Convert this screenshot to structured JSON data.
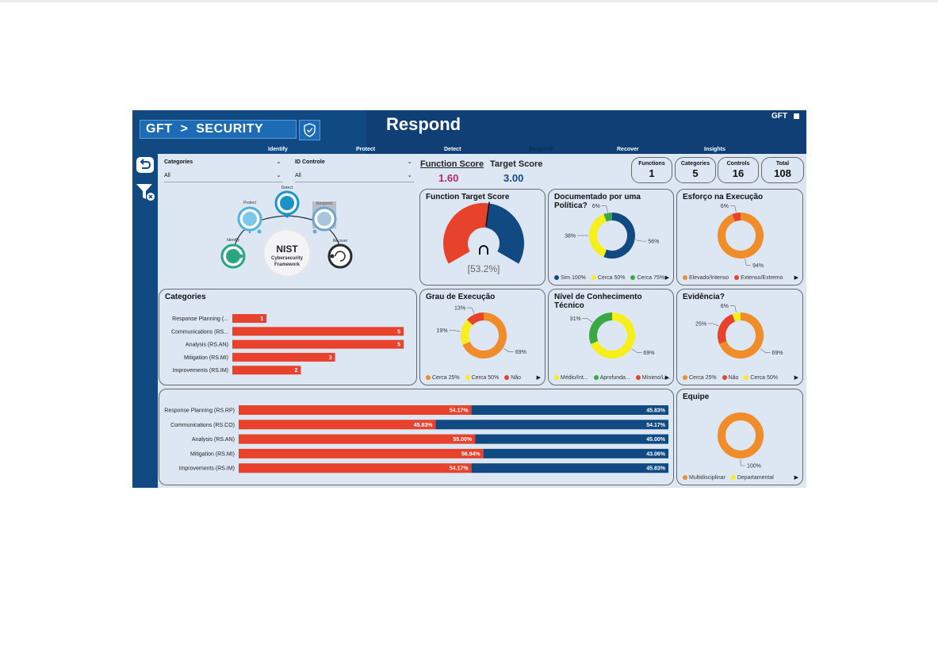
{
  "header": {
    "brand": "GFT",
    "brand_arrow": ">",
    "brand_section": "SECURITY",
    "title": "Respond",
    "corner_logo": "GFT"
  },
  "tabs": [
    {
      "label": "Identify",
      "active": false
    },
    {
      "label": "Protect",
      "active": false
    },
    {
      "label": "Detect",
      "active": false
    },
    {
      "label": "Respond",
      "active": true
    },
    {
      "label": "Recover",
      "active": false
    },
    {
      "label": "Insights",
      "active": false
    }
  ],
  "filters": {
    "categories": {
      "label": "Categories",
      "value": "All"
    },
    "id_controle": {
      "label": "ID Controle",
      "value": "All"
    }
  },
  "scores": {
    "function": {
      "label": "Function Score",
      "value": "1.60"
    },
    "target": {
      "label": "Target Score",
      "value": "3.00"
    }
  },
  "kpis": [
    {
      "label": "Functions",
      "value": "1"
    },
    {
      "label": "Categories",
      "value": "5"
    },
    {
      "label": "Controls",
      "value": "16"
    },
    {
      "label": "Total",
      "value": "108"
    }
  ],
  "nist": {
    "title": "NIST",
    "subtitle1": "Cybersecurity",
    "subtitle2": "Framework",
    "nodes": [
      "Identify",
      "Protect",
      "Detect",
      "Respond",
      "Recover"
    ]
  },
  "colors": {
    "red": "#e8412c",
    "navy": "#114a83",
    "yellow": "#f7ef1a",
    "green": "#3aa844",
    "orange": "#f08c2a",
    "score_pink": "#b42a6e"
  },
  "chart_data": [
    {
      "id": "gauge",
      "type": "gauge",
      "title": "Function Target Score",
      "value": 53.2,
      "label": "[53.2%]"
    },
    {
      "id": "politica",
      "type": "donut",
      "title": "Documentado por uma Política?",
      "series": [
        {
          "name": "Sim",
          "value": 56,
          "label": "56%",
          "color": "#114a83"
        },
        {
          "name": "Cerca 50%",
          "value": 38,
          "label": "38%",
          "color": "#f7ef1a"
        },
        {
          "name": "Cerca 75%",
          "value": 6,
          "label": "6%",
          "color": "#3aa844"
        }
      ],
      "legend": [
        "Sim 100%",
        "Cerca 50%",
        "Cerca 75%"
      ]
    },
    {
      "id": "esforco",
      "type": "donut",
      "title": "Esforço na Execução",
      "series": [
        {
          "name": "Elevado/Intenso",
          "value": 94,
          "label": "94%",
          "color": "#f08c2a"
        },
        {
          "name": "Extenso/Extremo",
          "value": 6,
          "label": "6%",
          "color": "#e8412c"
        }
      ],
      "legend": [
        "Elevado/Intenso",
        "Extenso/Extremo"
      ]
    },
    {
      "id": "categories_bar",
      "type": "bar",
      "title": "Categories",
      "categories": [
        "Response Planning (...",
        "Communications (RS...",
        "Analysis (RS.AN)",
        "Mitigation (RS.MI)",
        "Improvements (RS.IM)"
      ],
      "values": [
        1,
        5,
        5,
        3,
        2
      ]
    },
    {
      "id": "grau",
      "type": "donut",
      "title": "Grau de Execução",
      "series": [
        {
          "name": "Cerca 25%",
          "value": 69,
          "label": "69%",
          "color": "#f08c2a"
        },
        {
          "name": "Cerca 50%",
          "value": 19,
          "label": "19%",
          "color": "#f7ef1a"
        },
        {
          "name": "Não",
          "value": 13,
          "label": "13%",
          "color": "#e8412c"
        }
      ],
      "legend": [
        "Cerca 25%",
        "Cerca 50%",
        "Não"
      ]
    },
    {
      "id": "conhecimento",
      "type": "donut",
      "title": "Nível de Conhecimento Técnico",
      "series": [
        {
          "name": "Médio/Int...",
          "value": 69,
          "label": "69%",
          "color": "#f7ef1a"
        },
        {
          "name": "Aprofunda...",
          "value": 31,
          "label": "31%",
          "color": "#3aa844"
        },
        {
          "name": "Mínimo/Li...",
          "value": 0,
          "label": "",
          "color": "#e8412c"
        }
      ],
      "legend": [
        "Médio/Int...",
        "Aprofunda...",
        "Mínimo/Li..."
      ]
    },
    {
      "id": "evidencia",
      "type": "donut",
      "title": "Evidência?",
      "series": [
        {
          "name": "Cerca 25%",
          "value": 69,
          "label": "69%",
          "color": "#f08c2a"
        },
        {
          "name": "Não",
          "value": 25,
          "label": "25%",
          "color": "#e8412c"
        },
        {
          "name": "Cerca 50%",
          "value": 6,
          "label": "6%",
          "color": "#f7ef1a"
        }
      ],
      "legend": [
        "Cerca 25%",
        "Não",
        "Cerca 50%"
      ]
    },
    {
      "id": "stacked",
      "type": "bar",
      "title": "",
      "categories": [
        "Response Planning (RS.RP)",
        "Communications (RS.CO)",
        "Analysis (RS.AN)",
        "Mitigation (RS.MI)",
        "Improvements (RS.IM)"
      ],
      "series": [
        {
          "values": [
            54.17,
            45.83,
            55.0,
            56.94,
            54.17
          ],
          "labels": [
            "54.17%",
            "45.83%",
            "55.00%",
            "56.94%",
            "54.17%"
          ],
          "color": "#e8412c"
        },
        {
          "values": [
            45.83,
            54.17,
            45.0,
            43.06,
            45.83
          ],
          "labels": [
            "45.83%",
            "54.17%",
            "45.00%",
            "43.06%",
            "45.83%"
          ],
          "color": "#114a83"
        }
      ]
    },
    {
      "id": "equipe",
      "type": "donut",
      "title": "Equipe",
      "series": [
        {
          "name": "Multidisciplinar",
          "value": 100,
          "label": "100%",
          "color": "#f08c2a"
        },
        {
          "name": "Departamental",
          "value": 0,
          "label": "",
          "color": "#f7ef1a"
        }
      ],
      "legend": [
        "Multidisciplinar",
        "Departamental"
      ]
    }
  ]
}
